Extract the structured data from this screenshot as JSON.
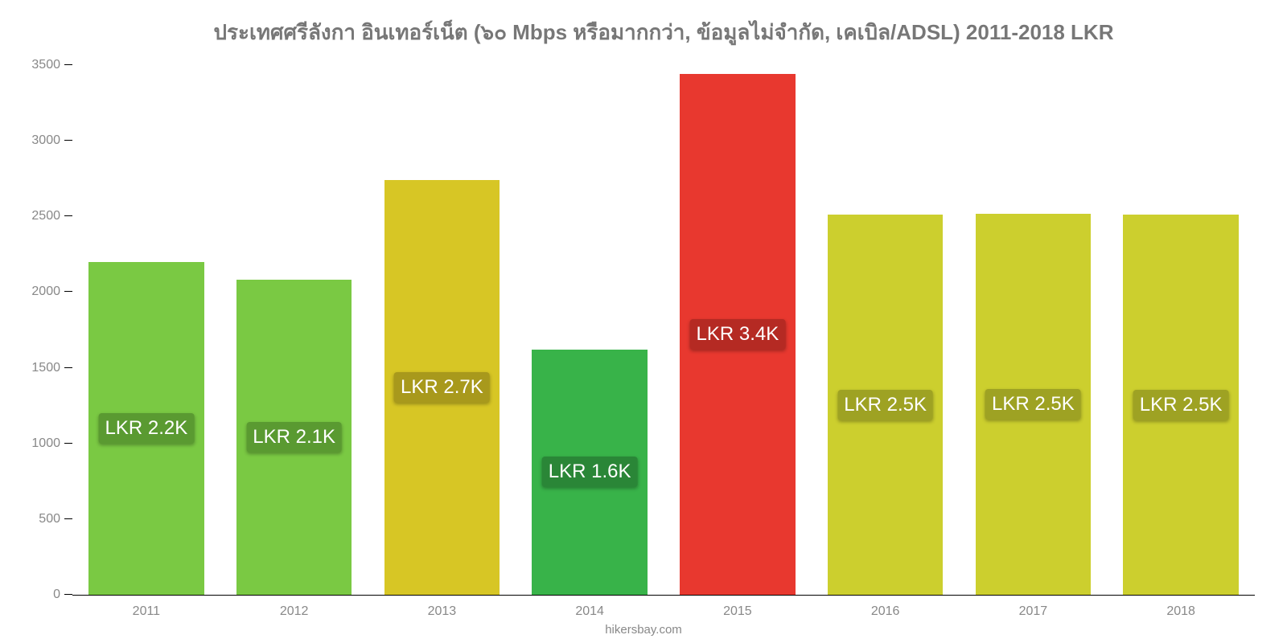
{
  "chart": {
    "type": "bar",
    "title": "ประเทศศรีลังกา อินเทอร์เน็ต (๖๐ Mbps หรือมากกว่า, ข้อมูลไม่จำกัด, เคเบิล/ADSL) 2011-2018 LKR",
    "title_color": "#777777",
    "title_fontsize": 26,
    "background_color": "#ffffff",
    "footer": "hikersbay.com",
    "footer_color": "#888888",
    "ylim": [
      0,
      3500
    ],
    "ytick_step": 500,
    "yticks": [
      0,
      500,
      1000,
      1500,
      2000,
      2500,
      3000,
      3500
    ],
    "axis_color": "#000000",
    "tick_label_color": "#888888",
    "tick_fontsize": 16,
    "bar_width": 0.78,
    "categories": [
      "2011",
      "2012",
      "2013",
      "2014",
      "2015",
      "2016",
      "2017",
      "2018"
    ],
    "values": [
      2200,
      2080,
      2740,
      1620,
      3440,
      2510,
      2520,
      2510
    ],
    "bar_colors": [
      "#7ac943",
      "#7ac943",
      "#d7c625",
      "#38b349",
      "#e8382f",
      "#cccf2e",
      "#cccf2e",
      "#cccf2e"
    ],
    "data_labels": [
      "LKR 2.2K",
      "LKR 2.1K",
      "LKR 2.7K",
      "LKR 1.6K",
      "LKR 3.4K",
      "LKR 2.5K",
      "LKR 2.5K",
      "LKR 2.5K"
    ],
    "data_label_bg": [
      "#5a9a31",
      "#5a9a31",
      "#a8991c",
      "#2a8637",
      "#b52a23",
      "#9ea223",
      "#9ea223",
      "#9ea223"
    ],
    "data_label_color": "#ffffff",
    "data_label_fontsize": 24
  }
}
